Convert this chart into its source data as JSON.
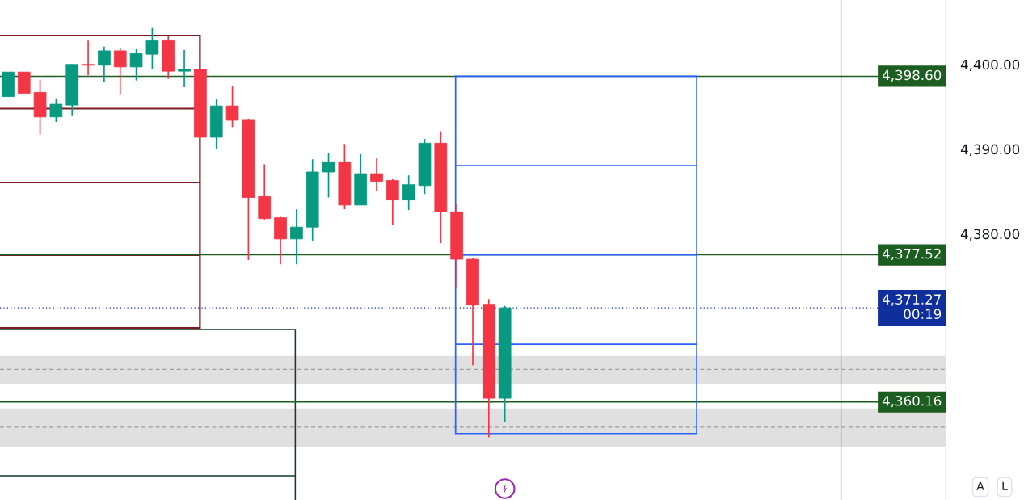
{
  "chart_data": {
    "type": "candlestick",
    "categories": [
      null,
      null,
      null,
      null,
      null,
      null,
      null,
      null,
      null,
      null,
      null,
      null,
      null,
      null,
      null,
      null,
      null,
      null,
      null,
      null,
      null,
      null,
      null,
      null,
      null,
      null,
      null,
      null,
      null,
      null,
      null,
      null,
      null,
      null,
      null,
      null,
      null,
      null,
      null,
      null,
      null,
      null,
      null,
      null,
      null,
      null,
      null,
      null,
      null,
      null,
      null,
      null,
      null,
      null,
      null,
      null,
      null,
      null,
      null
    ],
    "ohlc": [
      [
        4396.2,
        4399.1,
        4396.2,
        4399.1
      ],
      [
        4399.1,
        4399.1,
        4396.6,
        4396.6
      ],
      [
        4396.7,
        4398.2,
        4391.7,
        4393.8
      ],
      [
        4393.8,
        4396.0,
        4393.2,
        4395.3
      ],
      [
        4395.2,
        4400.0,
        4394.0,
        4400.0
      ],
      [
        4400.0,
        4402.8,
        4398.7,
        4399.9
      ],
      [
        4399.9,
        4402.1,
        4397.9,
        4401.6
      ],
      [
        4401.6,
        4401.9,
        4396.5,
        4399.7
      ],
      [
        4399.7,
        4401.8,
        4398.1,
        4401.3
      ],
      [
        4401.2,
        4404.3,
        4399.5,
        4402.8
      ],
      [
        4402.8,
        4403.4,
        4398.3,
        4399.2
      ],
      [
        4399.2,
        4401.7,
        4397.3,
        4399.4
      ],
      [
        4399.4,
        4399.4,
        4391.4,
        4391.4
      ],
      [
        4391.4,
        4395.9,
        4390.0,
        4395.1
      ],
      [
        4395.1,
        4397.5,
        4392.6,
        4393.4
      ],
      [
        4393.5,
        4393.6,
        4376.9,
        4384.3
      ],
      [
        4384.4,
        4388.2,
        4381.7,
        4381.8
      ],
      [
        4381.9,
        4382.0,
        4376.4,
        4379.4
      ],
      [
        4379.4,
        4382.9,
        4376.4,
        4380.8
      ],
      [
        4380.8,
        4388.8,
        4379.2,
        4387.3
      ],
      [
        4387.3,
        4389.5,
        4384.3,
        4388.5
      ],
      [
        4388.5,
        4390.6,
        4382.9,
        4383.4
      ],
      [
        4383.4,
        4389.4,
        4383.4,
        4387.1
      ],
      [
        4387.1,
        4389.0,
        4385.0,
        4386.2
      ],
      [
        4386.3,
        4386.5,
        4381.1,
        4384.0
      ],
      [
        4384.0,
        4386.9,
        4382.8,
        4385.8
      ],
      [
        4385.7,
        4391.2,
        4384.7,
        4390.7
      ],
      [
        4390.7,
        4392.1,
        4378.9,
        4382.6
      ],
      [
        4382.6,
        4383.6,
        4373.7,
        4377.0
      ],
      [
        4377.0,
        4377.1,
        4364.5,
        4371.6
      ],
      [
        4371.7,
        4372.3,
        4356.0,
        4360.6
      ],
      [
        4360.6,
        4371.5,
        4357.8,
        4371.27
      ],
      null,
      null,
      null,
      null,
      null,
      null,
      null,
      null,
      null,
      null,
      null,
      null,
      null,
      null,
      null,
      null,
      null,
      null,
      null,
      null,
      null,
      null,
      null,
      null,
      null,
      null,
      null
    ],
    "colors": [
      "#089981",
      "#f23645",
      "#f23645",
      "#089981",
      "#089981",
      "#f23645",
      "#089981",
      "#f23645",
      "#089981",
      "#089981",
      "#f23645",
      "#089981",
      "#f23645",
      "#089981",
      "#f23645",
      "#f23645",
      "#f23645",
      "#f23645",
      "#089981",
      "#089981",
      "#089981",
      "#f23645",
      "#089981",
      "#f23645",
      "#f23645",
      "#089981",
      "#089981",
      "#f23645",
      "#f23645",
      "#f23645",
      "#f23645",
      "#089981",
      null,
      null,
      null,
      null,
      null,
      null,
      null,
      null,
      null,
      null,
      null,
      null,
      null,
      null,
      null,
      null,
      null,
      null,
      null,
      null,
      null,
      null,
      null,
      null,
      null,
      null,
      null
    ],
    "ylim": [
      4348.6,
      4407.6
    ],
    "yticks": [
      {
        "value": 4380,
        "label": "4,380.00"
      },
      {
        "value": 4390,
        "label": "4,390.00"
      },
      {
        "value": 4400,
        "label": "4,400.00"
      }
    ],
    "tick_labels": "y",
    "ref_lines": [
      {
        "axis": "y",
        "value": 4398.6,
        "label": "4,398.60",
        "color": "#1b5e20"
      },
      {
        "axis": "y",
        "value": 4377.52,
        "label": "4,377.52",
        "color": "#1b5e20"
      },
      {
        "axis": "y",
        "value": 4371.27,
        "label": "4,371.27\n00:19",
        "color": "#0f2f9c",
        "line_style": "dotted"
      },
      {
        "axis": "y",
        "value": 4360.16,
        "label": "4,360.16",
        "color": "#1b5e20"
      },
      {
        "axis": "y",
        "value": 4364.0,
        "color": "#9e9e9e",
        "line_style": "dashed"
      },
      {
        "axis": "y",
        "value": 4357.2,
        "color": "#9e9e9e",
        "line_style": "dashed"
      }
    ],
    "bands": [
      {
        "axis": "y",
        "from": 4362.3,
        "to": 4365.6,
        "color": "#e0e0e0"
      },
      {
        "axis": "y",
        "from": 4354.9,
        "to": 4359.4,
        "color": "#e0e0e0"
      }
    ],
    "annotations": [
      "A",
      "L"
    ]
  }
}
